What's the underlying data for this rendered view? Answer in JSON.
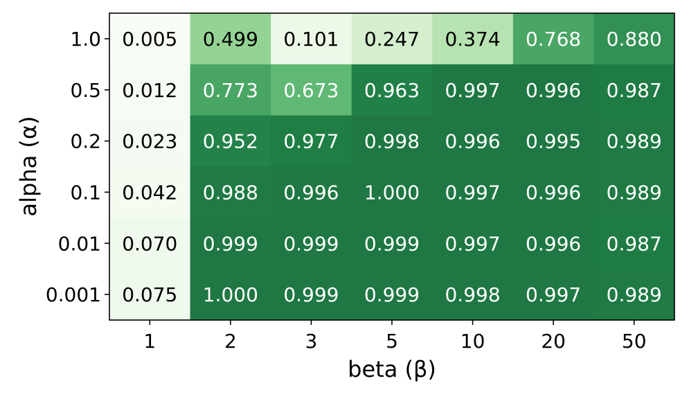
{
  "chart_data": {
    "type": "heatmap",
    "xlabel": "beta (β)",
    "ylabel": "alpha (α)",
    "x_categories": [
      "1",
      "2",
      "3",
      "5",
      "10",
      "20",
      "50"
    ],
    "y_categories": [
      "1.0",
      "0.5",
      "0.2",
      "0.1",
      "0.01",
      "0.001"
    ],
    "values": [
      [
        0.005,
        0.499,
        0.101,
        0.247,
        0.374,
        0.768,
        0.88
      ],
      [
        0.012,
        0.773,
        0.673,
        0.963,
        0.997,
        0.996,
        0.987
      ],
      [
        0.023,
        0.952,
        0.977,
        0.998,
        0.996,
        0.995,
        0.989
      ],
      [
        0.042,
        0.988,
        0.996,
        1.0,
        0.997,
        0.996,
        0.989
      ],
      [
        0.07,
        0.999,
        0.999,
        0.999,
        0.997,
        0.996,
        0.987
      ],
      [
        0.075,
        1.0,
        0.999,
        0.999,
        0.998,
        0.997,
        0.989
      ]
    ],
    "value_labels": [
      [
        "0.005",
        "0.499",
        "0.101",
        "0.247",
        "0.374",
        "0.768",
        "0.880"
      ],
      [
        "0.012",
        "0.773",
        "0.673",
        "0.963",
        "0.997",
        "0.996",
        "0.987"
      ],
      [
        "0.023",
        "0.952",
        "0.977",
        "0.998",
        "0.996",
        "0.995",
        "0.989"
      ],
      [
        "0.042",
        "0.988",
        "0.996",
        "1.000",
        "0.997",
        "0.996",
        "0.989"
      ],
      [
        "0.070",
        "0.999",
        "0.999",
        "0.999",
        "0.997",
        "0.996",
        "0.987"
      ],
      [
        "0.075",
        "1.000",
        "0.999",
        "0.999",
        "0.998",
        "0.997",
        "0.989"
      ]
    ],
    "colormap": "Greens",
    "value_range": [
      0,
      1
    ],
    "colorbar": false,
    "grid": false,
    "colors": {
      "low": "#f7fcf5",
      "high": "#1f5a31",
      "text_dark": "#000000",
      "text_light": "#ffffff"
    }
  }
}
